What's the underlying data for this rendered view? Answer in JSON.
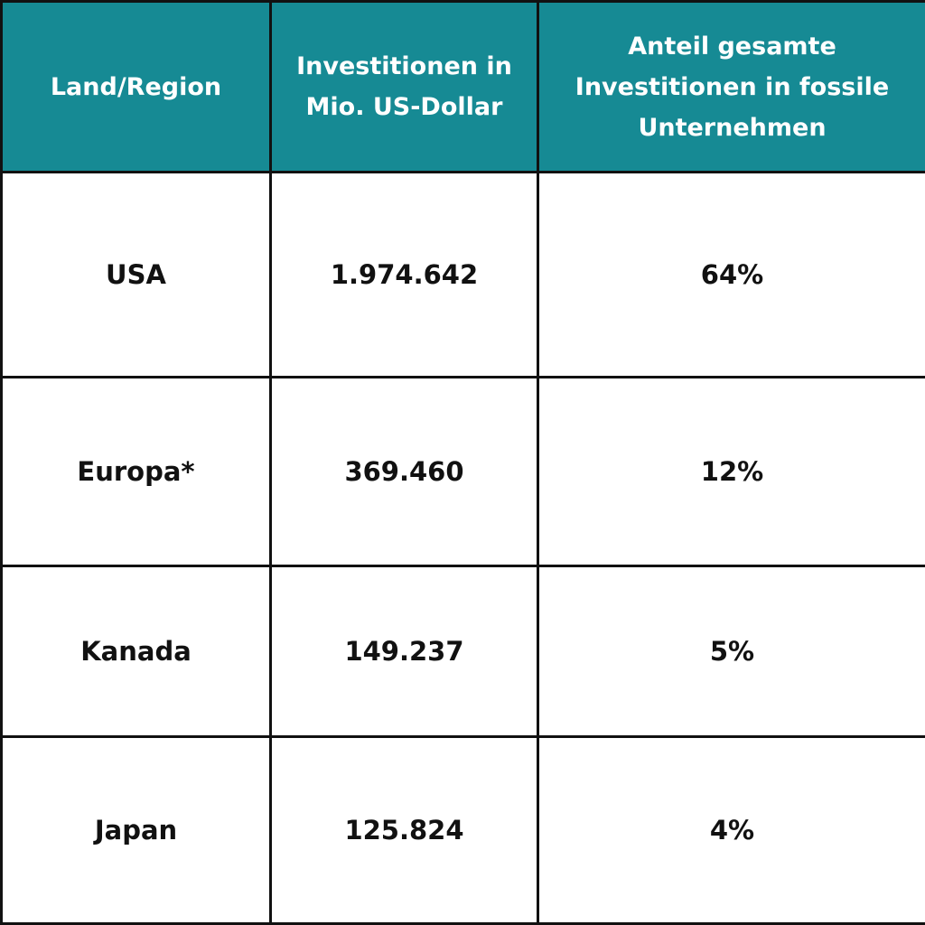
{
  "chart_data": {
    "type": "table",
    "columns": [
      "Land/Region",
      "Investitionen in Mio. US-Dollar",
      "Anteil gesamte Investitionen in fossile Unternehmen"
    ],
    "rows": [
      [
        "USA",
        "1.974.642",
        "64%"
      ],
      [
        "Europa*",
        "369.460",
        "12%"
      ],
      [
        "Kanada",
        "149.237",
        "5%"
      ],
      [
        "Japan",
        "125.824",
        "4%"
      ]
    ],
    "header_color": "#168a94",
    "header_text_color": "#ffffff",
    "border_color": "#111111"
  }
}
